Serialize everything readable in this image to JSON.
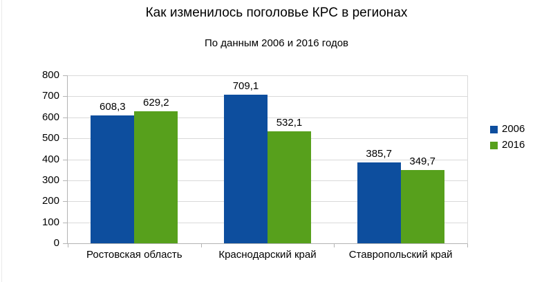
{
  "chart_data": {
    "type": "bar",
    "title": "Как изменилось поголовье КРС в регионах",
    "subtitle": "По данным 2006 и 2016 годов",
    "categories": [
      "Ростовская область",
      "Краснодарский край",
      "Ставропольский край"
    ],
    "series": [
      {
        "name": "2006",
        "color": "#0d4e9e",
        "values": [
          608.3,
          709.1,
          385.7
        ],
        "value_labels": [
          "608,3",
          "709,1",
          "385,7"
        ]
      },
      {
        "name": "2016",
        "color": "#57a01c",
        "values": [
          629.2,
          532.1,
          349.7
        ],
        "value_labels": [
          "629,2",
          "532,1",
          "349,7"
        ]
      }
    ],
    "ylim": [
      0,
      800
    ],
    "ytick_step": 100,
    "yticks": [
      "0",
      "100",
      "200",
      "300",
      "400",
      "500",
      "600",
      "700",
      "800"
    ],
    "grid": true,
    "legend_position": "right",
    "colors": {
      "gridline": "#d9d9d9",
      "axis": "#b3b3b3",
      "background": "#ffffff",
      "text": "#000000"
    }
  }
}
